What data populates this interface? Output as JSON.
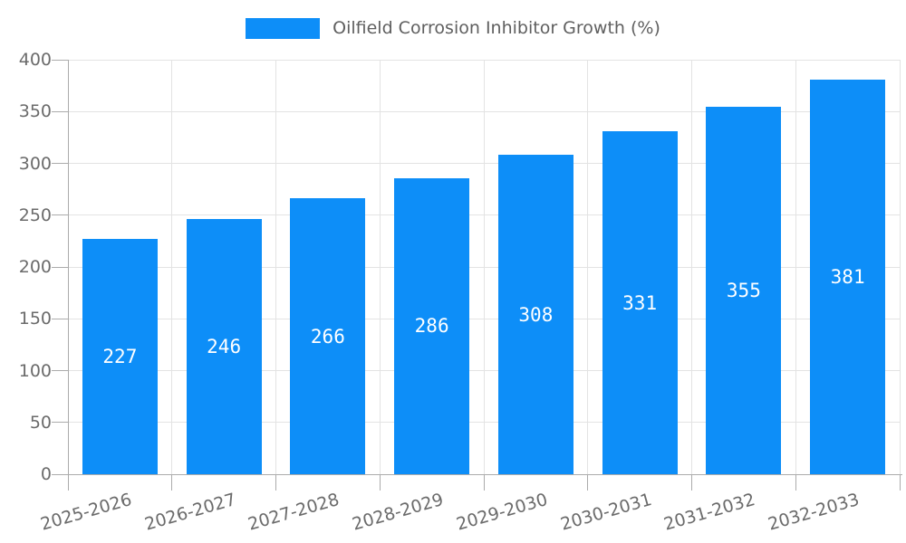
{
  "legend": {
    "label": "Oilfield Corrosion Inhibitor Growth (%)"
  },
  "chart_data": {
    "type": "bar",
    "title": "Oilfield Corrosion Inhibitor Growth (%)",
    "categories": [
      "2025-2026",
      "2026-2027",
      "2027-2028",
      "2028-2029",
      "2029-2030",
      "2030-2031",
      "2031-2032",
      "2032-2033"
    ],
    "values": [
      227,
      246,
      266,
      286,
      308,
      331,
      355,
      381
    ],
    "series": [
      {
        "name": "Oilfield Corrosion Inhibitor Growth (%)",
        "values": [
          227,
          246,
          266,
          286,
          308,
          331,
          355,
          381
        ]
      }
    ],
    "xlabel": "",
    "ylabel": "",
    "ylim": [
      0,
      400
    ],
    "yticks": [
      0,
      50,
      100,
      150,
      200,
      250,
      300,
      350,
      400
    ],
    "grid": true,
    "legend_position": "top",
    "value_labels": "inside-center",
    "colors": {
      "bar": "#0D8EF8",
      "value_label": "#FFFFFF",
      "axis_label": "#6B6B6B",
      "legend_text": "#5F5F5F",
      "grid_line": "#E3E3E3",
      "axis_line": "#ABABAB"
    }
  }
}
